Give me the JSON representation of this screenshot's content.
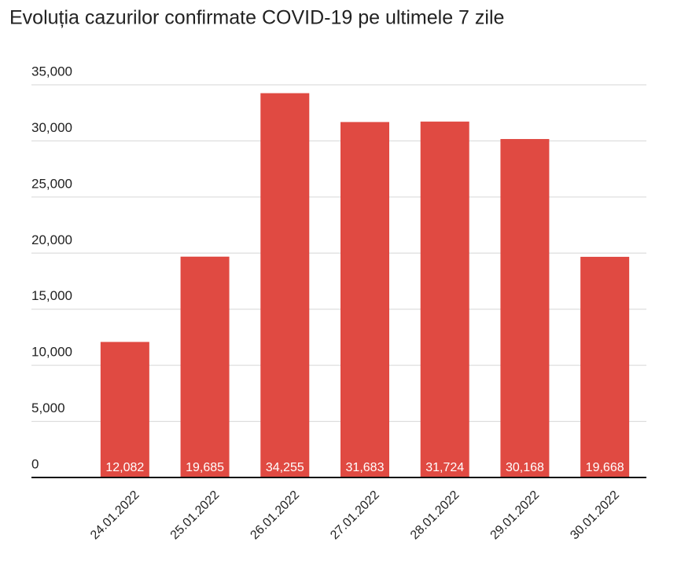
{
  "chart_data": {
    "type": "bar",
    "title": "Evoluția cazurilor confirmate COVID-19 pe ultimele 7 zile",
    "categories": [
      "24.01.2022",
      "25.01.2022",
      "26.01.2022",
      "27.01.2022",
      "28.01.2022",
      "29.01.2022",
      "30.01.2022"
    ],
    "values": [
      12082,
      19685,
      34255,
      31683,
      31724,
      30168,
      19668
    ],
    "value_labels": [
      "12,082",
      "19,685",
      "34,255",
      "31,683",
      "31,724",
      "30,168",
      "19,668"
    ],
    "color": "#e04a42",
    "ylim": [
      0,
      35000
    ],
    "yticks": [
      0,
      {
        "value": 5000,
        "label": "5,000"
      },
      {
        "value": 10000,
        "label": "10,000"
      },
      {
        "value": 15000,
        "label": "15,000"
      },
      {
        "value": 20000,
        "label": "20,000"
      },
      {
        "value": 25000,
        "label": "25,000"
      },
      {
        "value": 30000,
        "label": "30,000"
      },
      {
        "value": 35000,
        "label": "35,000"
      }
    ],
    "grid": true
  }
}
